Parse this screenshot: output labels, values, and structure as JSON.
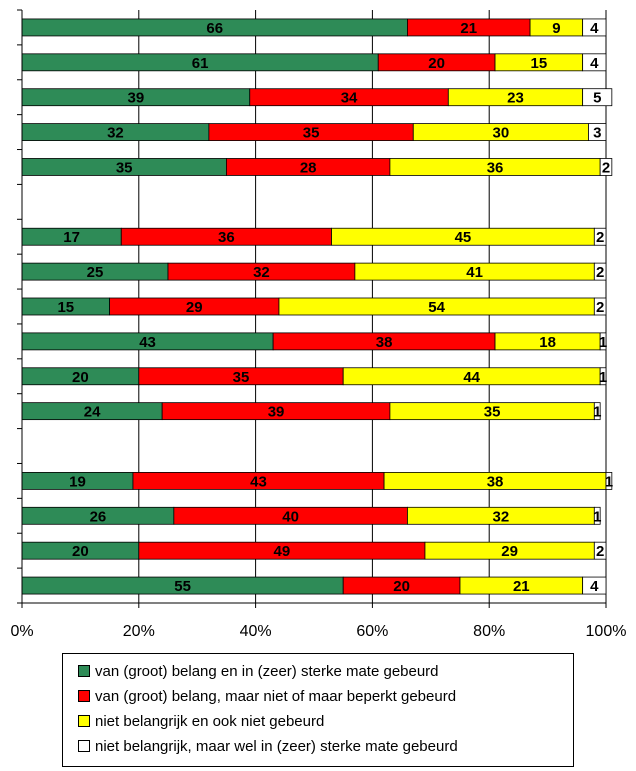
{
  "chart_data": {
    "type": "bar",
    "orientation": "horizontal",
    "stacked": "percent",
    "xlim": [
      0,
      100
    ],
    "grid": true,
    "legend_position": "bottom",
    "x_ticks": [
      "0%",
      "20%",
      "40%",
      "60%",
      "80%",
      "100%"
    ],
    "categories": [
      "",
      "",
      "",
      "",
      "",
      "",
      "",
      "",
      "",
      "",
      "",
      "",
      "",
      "",
      "",
      "",
      ""
    ],
    "series": [
      {
        "name": "van (groot) belang en in (zeer) sterke mate gebeurd",
        "color": "#2e8b57",
        "values": [
          66,
          61,
          39,
          32,
          35,
          null,
          17,
          25,
          15,
          43,
          20,
          24,
          null,
          19,
          26,
          20,
          55
        ]
      },
      {
        "name": "van (groot) belang, maar niet of maar beperkt gebeurd",
        "color": "#ff0000",
        "values": [
          21,
          20,
          34,
          35,
          28,
          null,
          36,
          32,
          29,
          38,
          35,
          39,
          null,
          43,
          40,
          49,
          20
        ]
      },
      {
        "name": "niet belangrijk en ook niet gebeurd",
        "color": "#ffff00",
        "values": [
          9,
          15,
          23,
          30,
          36,
          null,
          45,
          41,
          54,
          18,
          44,
          35,
          null,
          38,
          32,
          29,
          21
        ]
      },
      {
        "name": "niet belangrijk, maar wel in (zeer) sterke mate gebeurd",
        "color": "#ffffff",
        "values": [
          4,
          4,
          5,
          3,
          2,
          null,
          2,
          2,
          2,
          1,
          1,
          1,
          null,
          1,
          1,
          2,
          4
        ]
      }
    ]
  }
}
